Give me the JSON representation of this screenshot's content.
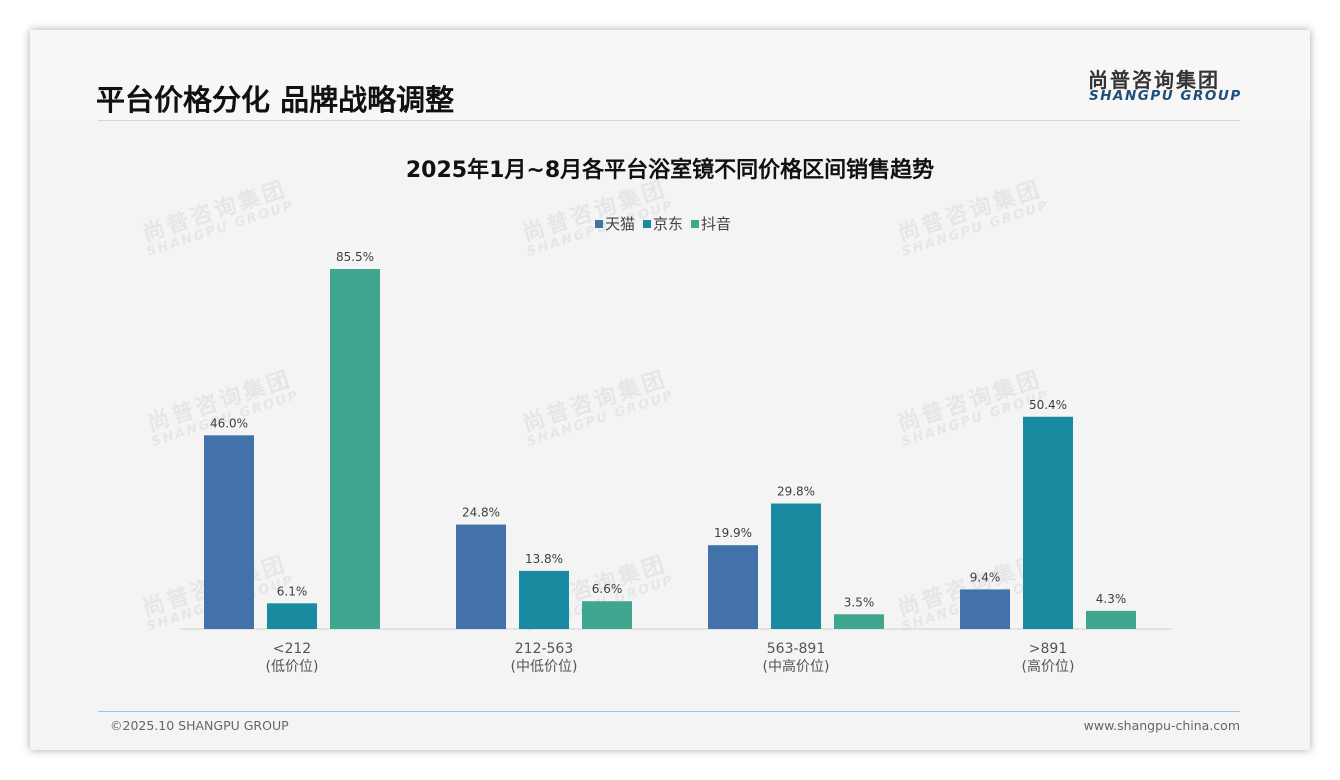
{
  "header": {
    "title": "平台价格分化 品牌战略调整",
    "logo_cn": "尚普咨询集团",
    "logo_en": "SHANGPU GROUP"
  },
  "watermark": {
    "cn": "尚普咨询集团",
    "en": "SHANGPU GROUP"
  },
  "footer": {
    "copyright": "©2025.10 SHANGPU GROUP",
    "website": "www.shangpu-china.com"
  },
  "colors": {
    "天猫": "#4272a9",
    "京东": "#1a8aa1",
    "抖音": "#41a690"
  },
  "chart_data": {
    "type": "bar",
    "title": "2025年1月~8月各平台浴室镜不同价格区间销售趋势",
    "categories": [
      "<212",
      "212-563",
      "563-891",
      ">891"
    ],
    "category_sublabels": [
      "(低价位)",
      "(中低价位)",
      "(中高价位)",
      "(高价位)"
    ],
    "series": [
      {
        "name": "天猫",
        "values": [
          46.0,
          24.8,
          19.9,
          9.4
        ]
      },
      {
        "name": "京东",
        "values": [
          6.1,
          13.8,
          29.8,
          50.4
        ]
      },
      {
        "name": "抖音",
        "values": [
          85.5,
          6.6,
          3.5,
          4.3
        ]
      }
    ],
    "value_format": "percent",
    "ylim": [
      0,
      85.5
    ],
    "legend": "top-center",
    "grid": false
  }
}
